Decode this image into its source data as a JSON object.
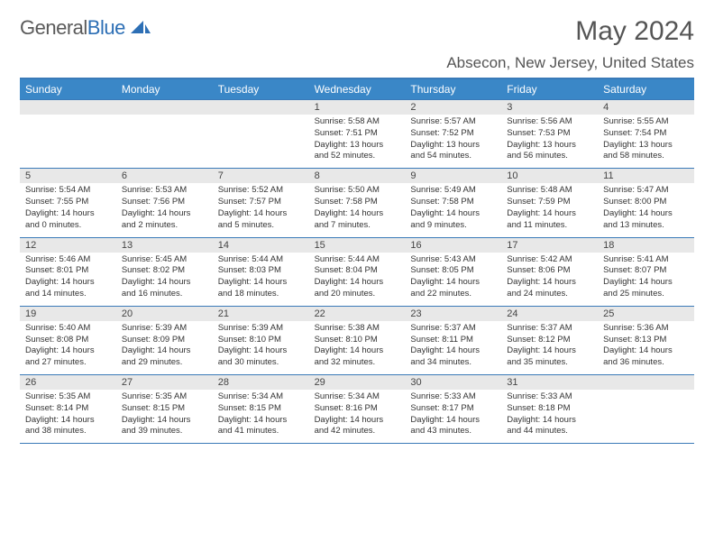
{
  "logo": {
    "text1": "General",
    "text2": "Blue",
    "color1": "#5a5a5a",
    "color2": "#2d6fb5"
  },
  "title": "May 2024",
  "location": "Absecon, New Jersey, United States",
  "header_bg": "#3a87c7",
  "border_color": "#3a7ab8",
  "daynum_bg": "#e8e8e8",
  "daynames": [
    "Sunday",
    "Monday",
    "Tuesday",
    "Wednesday",
    "Thursday",
    "Friday",
    "Saturday"
  ],
  "weeks": [
    [
      null,
      null,
      null,
      {
        "n": "1",
        "sr": "5:58 AM",
        "ss": "7:51 PM",
        "dl": "13 hours and 52 minutes."
      },
      {
        "n": "2",
        "sr": "5:57 AM",
        "ss": "7:52 PM",
        "dl": "13 hours and 54 minutes."
      },
      {
        "n": "3",
        "sr": "5:56 AM",
        "ss": "7:53 PM",
        "dl": "13 hours and 56 minutes."
      },
      {
        "n": "4",
        "sr": "5:55 AM",
        "ss": "7:54 PM",
        "dl": "13 hours and 58 minutes."
      }
    ],
    [
      {
        "n": "5",
        "sr": "5:54 AM",
        "ss": "7:55 PM",
        "dl": "14 hours and 0 minutes."
      },
      {
        "n": "6",
        "sr": "5:53 AM",
        "ss": "7:56 PM",
        "dl": "14 hours and 2 minutes."
      },
      {
        "n": "7",
        "sr": "5:52 AM",
        "ss": "7:57 PM",
        "dl": "14 hours and 5 minutes."
      },
      {
        "n": "8",
        "sr": "5:50 AM",
        "ss": "7:58 PM",
        "dl": "14 hours and 7 minutes."
      },
      {
        "n": "9",
        "sr": "5:49 AM",
        "ss": "7:58 PM",
        "dl": "14 hours and 9 minutes."
      },
      {
        "n": "10",
        "sr": "5:48 AM",
        "ss": "7:59 PM",
        "dl": "14 hours and 11 minutes."
      },
      {
        "n": "11",
        "sr": "5:47 AM",
        "ss": "8:00 PM",
        "dl": "14 hours and 13 minutes."
      }
    ],
    [
      {
        "n": "12",
        "sr": "5:46 AM",
        "ss": "8:01 PM",
        "dl": "14 hours and 14 minutes."
      },
      {
        "n": "13",
        "sr": "5:45 AM",
        "ss": "8:02 PM",
        "dl": "14 hours and 16 minutes."
      },
      {
        "n": "14",
        "sr": "5:44 AM",
        "ss": "8:03 PM",
        "dl": "14 hours and 18 minutes."
      },
      {
        "n": "15",
        "sr": "5:44 AM",
        "ss": "8:04 PM",
        "dl": "14 hours and 20 minutes."
      },
      {
        "n": "16",
        "sr": "5:43 AM",
        "ss": "8:05 PM",
        "dl": "14 hours and 22 minutes."
      },
      {
        "n": "17",
        "sr": "5:42 AM",
        "ss": "8:06 PM",
        "dl": "14 hours and 24 minutes."
      },
      {
        "n": "18",
        "sr": "5:41 AM",
        "ss": "8:07 PM",
        "dl": "14 hours and 25 minutes."
      }
    ],
    [
      {
        "n": "19",
        "sr": "5:40 AM",
        "ss": "8:08 PM",
        "dl": "14 hours and 27 minutes."
      },
      {
        "n": "20",
        "sr": "5:39 AM",
        "ss": "8:09 PM",
        "dl": "14 hours and 29 minutes."
      },
      {
        "n": "21",
        "sr": "5:39 AM",
        "ss": "8:10 PM",
        "dl": "14 hours and 30 minutes."
      },
      {
        "n": "22",
        "sr": "5:38 AM",
        "ss": "8:10 PM",
        "dl": "14 hours and 32 minutes."
      },
      {
        "n": "23",
        "sr": "5:37 AM",
        "ss": "8:11 PM",
        "dl": "14 hours and 34 minutes."
      },
      {
        "n": "24",
        "sr": "5:37 AM",
        "ss": "8:12 PM",
        "dl": "14 hours and 35 minutes."
      },
      {
        "n": "25",
        "sr": "5:36 AM",
        "ss": "8:13 PM",
        "dl": "14 hours and 36 minutes."
      }
    ],
    [
      {
        "n": "26",
        "sr": "5:35 AM",
        "ss": "8:14 PM",
        "dl": "14 hours and 38 minutes."
      },
      {
        "n": "27",
        "sr": "5:35 AM",
        "ss": "8:15 PM",
        "dl": "14 hours and 39 minutes."
      },
      {
        "n": "28",
        "sr": "5:34 AM",
        "ss": "8:15 PM",
        "dl": "14 hours and 41 minutes."
      },
      {
        "n": "29",
        "sr": "5:34 AM",
        "ss": "8:16 PM",
        "dl": "14 hours and 42 minutes."
      },
      {
        "n": "30",
        "sr": "5:33 AM",
        "ss": "8:17 PM",
        "dl": "14 hours and 43 minutes."
      },
      {
        "n": "31",
        "sr": "5:33 AM",
        "ss": "8:18 PM",
        "dl": "14 hours and 44 minutes."
      },
      null
    ]
  ],
  "labels": {
    "sunrise": "Sunrise: ",
    "sunset": "Sunset: ",
    "daylight": "Daylight: "
  }
}
